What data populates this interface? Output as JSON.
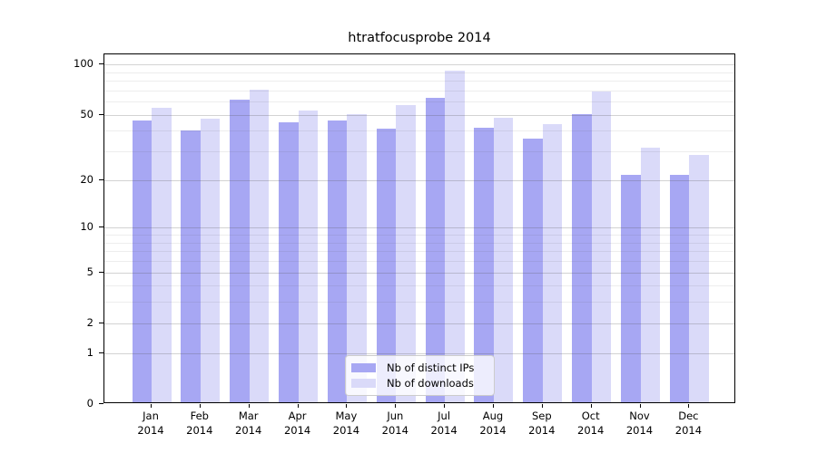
{
  "title": "htratfocusprobe 2014",
  "chart_data": {
    "type": "bar",
    "title": "htratfocusprobe 2014",
    "categories": [
      "Jan 2014",
      "Feb 2014",
      "Mar 2014",
      "Apr 2014",
      "May 2014",
      "Jun 2014",
      "Jul 2014",
      "Aug 2014",
      "Sep 2014",
      "Oct 2014",
      "Nov 2014",
      "Dec 2014"
    ],
    "series": [
      {
        "name": "Nb of distinct IPs",
        "color": "#a7a7f3",
        "values": [
          45,
          39,
          60,
          44,
          45,
          40,
          62,
          41,
          35,
          49,
          21,
          21
        ]
      },
      {
        "name": "Nb of downloads",
        "color": "#dadaf9",
        "values": [
          54,
          46,
          69,
          52,
          49,
          56,
          90,
          47,
          43,
          67,
          31,
          28
        ]
      }
    ],
    "xlabel": "",
    "ylabel": "",
    "yscale": "log1p",
    "ylim": [
      0,
      115
    ],
    "y_major_ticks": [
      0,
      1,
      2,
      5,
      10,
      20,
      50,
      100
    ],
    "y_minor_ticks": [
      3,
      4,
      6,
      7,
      8,
      9,
      30,
      40,
      60,
      70,
      80,
      90
    ],
    "grid": true,
    "legend_position": "inside-bottom-center"
  }
}
